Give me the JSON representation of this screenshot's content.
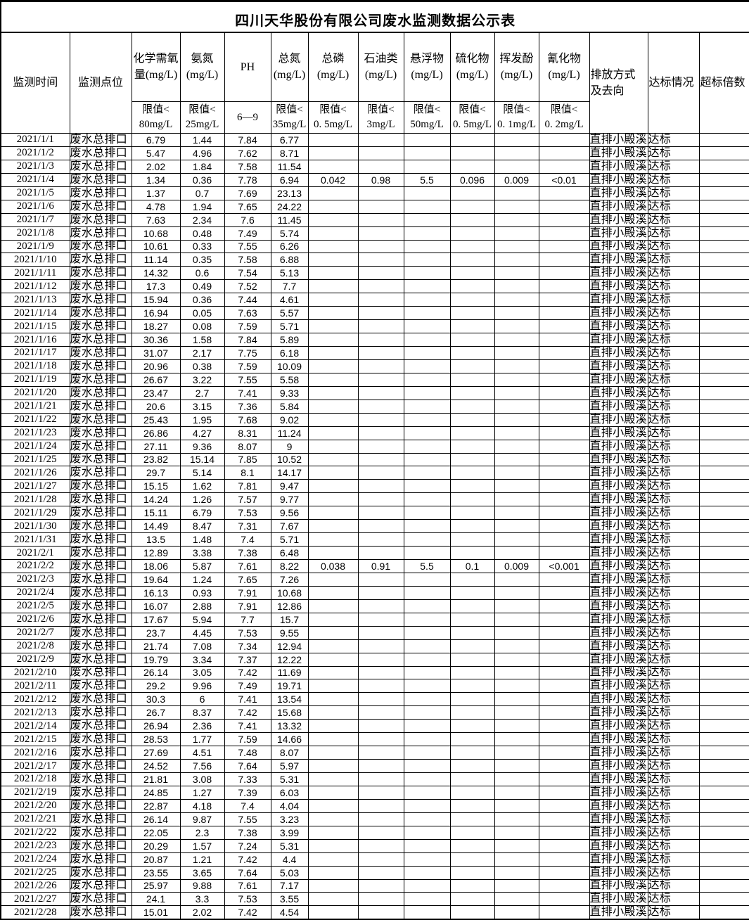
{
  "title": "四川天华股份有限公司废水监测数据公示表",
  "header": {
    "cols": [
      "监测时间",
      "监测点位",
      "化学需氧\n量(mg/L)",
      "氨氮\n(mg/L)",
      "PH",
      "总氮\n(mg/L)",
      "总磷\n(mg/L)",
      "石油类\n(mg/L)",
      "悬浮物\n(mg/L)",
      "硫化物\n(mg/L)",
      "挥发酚\n(mg/L)",
      "氰化物\n(mg/L)",
      "排放方式\n及去向",
      "达标情况",
      "超标倍数"
    ],
    "limits": [
      "限值<\n80mg/L",
      "限值<\n25mg/L",
      "6—9",
      "限值<\n35mg/L",
      "限值<\n0. 5mg/L",
      "限值<\n3mg/L",
      "限值<\n50mg/L",
      "限值<\n0. 5mg/L",
      "限值<\n0. 1mg/L",
      "限值<\n0. 2mg/L"
    ]
  },
  "repeat": {
    "monitor_point": "废水总排口",
    "discharge": "直排小殿溪",
    "status": "达标",
    "exceed_multiple": ""
  },
  "rows": [
    [
      "2021/1/1",
      "6.79",
      "1.44",
      "7.84",
      "6.77",
      "",
      "",
      "",
      "",
      "",
      ""
    ],
    [
      "2021/1/2",
      "5.47",
      "4.96",
      "7.62",
      "8.71",
      "",
      "",
      "",
      "",
      "",
      ""
    ],
    [
      "2021/1/3",
      "2.02",
      "1.84",
      "7.58",
      "11.54",
      "",
      "",
      "",
      "",
      "",
      ""
    ],
    [
      "2021/1/4",
      "1.34",
      "0.36",
      "7.78",
      "6.94",
      "0.042",
      "0.98",
      "5.5",
      "0.096",
      "0.009",
      "<0.01"
    ],
    [
      "2021/1/5",
      "1.37",
      "0.7",
      "7.69",
      "23.13",
      "",
      "",
      "",
      "",
      "",
      ""
    ],
    [
      "2021/1/6",
      "4.78",
      "1.94",
      "7.65",
      "24.22",
      "",
      "",
      "",
      "",
      "",
      ""
    ],
    [
      "2021/1/7",
      "7.63",
      "2.34",
      "7.6",
      "11.45",
      "",
      "",
      "",
      "",
      "",
      ""
    ],
    [
      "2021/1/8",
      "10.68",
      "0.48",
      "7.49",
      "5.74",
      "",
      "",
      "",
      "",
      "",
      ""
    ],
    [
      "2021/1/9",
      "10.61",
      "0.33",
      "7.55",
      "6.26",
      "",
      "",
      "",
      "",
      "",
      ""
    ],
    [
      "2021/1/10",
      "11.14",
      "0.35",
      "7.58",
      "6.88",
      "",
      "",
      "",
      "",
      "",
      ""
    ],
    [
      "2021/1/11",
      "14.32",
      "0.6",
      "7.54",
      "5.13",
      "",
      "",
      "",
      "",
      "",
      ""
    ],
    [
      "2021/1/12",
      "17.3",
      "0.49",
      "7.52",
      "7.7",
      "",
      "",
      "",
      "",
      "",
      ""
    ],
    [
      "2021/1/13",
      "15.94",
      "0.36",
      "7.44",
      "4.61",
      "",
      "",
      "",
      "",
      "",
      ""
    ],
    [
      "2021/1/14",
      "16.94",
      "0.05",
      "7.63",
      "5.57",
      "",
      "",
      "",
      "",
      "",
      ""
    ],
    [
      "2021/1/15",
      "18.27",
      "0.08",
      "7.59",
      "5.71",
      "",
      "",
      "",
      "",
      "",
      ""
    ],
    [
      "2021/1/16",
      "30.36",
      "1.58",
      "7.84",
      "5.89",
      "",
      "",
      "",
      "",
      "",
      ""
    ],
    [
      "2021/1/17",
      "31.07",
      "2.17",
      "7.75",
      "6.18",
      "",
      "",
      "",
      "",
      "",
      ""
    ],
    [
      "2021/1/18",
      "20.96",
      "0.38",
      "7.59",
      "10.09",
      "",
      "",
      "",
      "",
      "",
      ""
    ],
    [
      "2021/1/19",
      "26.67",
      "3.22",
      "7.55",
      "5.58",
      "",
      "",
      "",
      "",
      "",
      ""
    ],
    [
      "2021/1/20",
      "23.47",
      "2.7",
      "7.41",
      "9.33",
      "",
      "",
      "",
      "",
      "",
      ""
    ],
    [
      "2021/1/21",
      "20.6",
      "3.15",
      "7.36",
      "5.84",
      "",
      "",
      "",
      "",
      "",
      ""
    ],
    [
      "2021/1/22",
      "25.43",
      "1.95",
      "7.68",
      "9.02",
      "",
      "",
      "",
      "",
      "",
      ""
    ],
    [
      "2021/1/23",
      "26.86",
      "4.27",
      "8.31",
      "11.24",
      "",
      "",
      "",
      "",
      "",
      ""
    ],
    [
      "2021/1/24",
      "27.11",
      "9.36",
      "8.07",
      "9",
      "",
      "",
      "",
      "",
      "",
      ""
    ],
    [
      "2021/1/25",
      "23.82",
      "15.14",
      "7.85",
      "10.52",
      "",
      "",
      "",
      "",
      "",
      ""
    ],
    [
      "2021/1/26",
      "29.7",
      "5.14",
      "8.1",
      "14.17",
      "",
      "",
      "",
      "",
      "",
      ""
    ],
    [
      "2021/1/27",
      "15.15",
      "1.62",
      "7.81",
      "9.47",
      "",
      "",
      "",
      "",
      "",
      ""
    ],
    [
      "2021/1/28",
      "14.24",
      "1.26",
      "7.57",
      "9.77",
      "",
      "",
      "",
      "",
      "",
      ""
    ],
    [
      "2021/1/29",
      "15.11",
      "6.79",
      "7.53",
      "9.56",
      "",
      "",
      "",
      "",
      "",
      ""
    ],
    [
      "2021/1/30",
      "14.49",
      "8.47",
      "7.31",
      "7.67",
      "",
      "",
      "",
      "",
      "",
      ""
    ],
    [
      "2021/1/31",
      "13.5",
      "1.48",
      "7.4",
      "5.71",
      "",
      "",
      "",
      "",
      "",
      ""
    ],
    [
      "2021/2/1",
      "12.89",
      "3.38",
      "7.38",
      "6.48",
      "",
      "",
      "",
      "",
      "",
      ""
    ],
    [
      "2021/2/2",
      "18.06",
      "5.87",
      "7.61",
      "8.22",
      "0.038",
      "0.91",
      "5.5",
      "0.1",
      "0.009",
      "<0.001"
    ],
    [
      "2021/2/3",
      "19.64",
      "1.24",
      "7.65",
      "7.26",
      "",
      "",
      "",
      "",
      "",
      ""
    ],
    [
      "2021/2/4",
      "16.13",
      "0.93",
      "7.91",
      "10.68",
      "",
      "",
      "",
      "",
      "",
      ""
    ],
    [
      "2021/2/5",
      "16.07",
      "2.88",
      "7.91",
      "12.86",
      "",
      "",
      "",
      "",
      "",
      ""
    ],
    [
      "2021/2/6",
      "17.67",
      "5.94",
      "7.7",
      "15.7",
      "",
      "",
      "",
      "",
      "",
      ""
    ],
    [
      "2021/2/7",
      "23.7",
      "4.45",
      "7.53",
      "9.55",
      "",
      "",
      "",
      "",
      "",
      ""
    ],
    [
      "2021/2/8",
      "21.74",
      "7.08",
      "7.34",
      "12.94",
      "",
      "",
      "",
      "",
      "",
      ""
    ],
    [
      "2021/2/9",
      "19.79",
      "3.34",
      "7.37",
      "12.22",
      "",
      "",
      "",
      "",
      "",
      ""
    ],
    [
      "2021/2/10",
      "26.14",
      "3.05",
      "7.42",
      "11.69",
      "",
      "",
      "",
      "",
      "",
      ""
    ],
    [
      "2021/2/11",
      "29.2",
      "9.96",
      "7.49",
      "19.71",
      "",
      "",
      "",
      "",
      "",
      ""
    ],
    [
      "2021/2/12",
      "30.3",
      "6",
      "7.41",
      "13.54",
      "",
      "",
      "",
      "",
      "",
      ""
    ],
    [
      "2021/2/13",
      "26.7",
      "8.37",
      "7.42",
      "15.68",
      "",
      "",
      "",
      "",
      "",
      ""
    ],
    [
      "2021/2/14",
      "26.94",
      "2.36",
      "7.41",
      "13.32",
      "",
      "",
      "",
      "",
      "",
      ""
    ],
    [
      "2021/2/15",
      "28.53",
      "1.77",
      "7.59",
      "14.66",
      "",
      "",
      "",
      "",
      "",
      ""
    ],
    [
      "2021/2/16",
      "27.69",
      "4.51",
      "7.48",
      "8.07",
      "",
      "",
      "",
      "",
      "",
      ""
    ],
    [
      "2021/2/17",
      "24.52",
      "7.56",
      "7.64",
      "5.97",
      "",
      "",
      "",
      "",
      "",
      ""
    ],
    [
      "2021/2/18",
      "21.81",
      "3.08",
      "7.33",
      "5.31",
      "",
      "",
      "",
      "",
      "",
      ""
    ],
    [
      "2021/2/19",
      "24.85",
      "1.27",
      "7.39",
      "6.03",
      "",
      "",
      "",
      "",
      "",
      ""
    ],
    [
      "2021/2/20",
      "22.87",
      "4.18",
      "7.4",
      "4.04",
      "",
      "",
      "",
      "",
      "",
      ""
    ],
    [
      "2021/2/21",
      "26.14",
      "9.87",
      "7.55",
      "3.23",
      "",
      "",
      "",
      "",
      "",
      ""
    ],
    [
      "2021/2/22",
      "22.05",
      "2.3",
      "7.38",
      "3.99",
      "",
      "",
      "",
      "",
      "",
      ""
    ],
    [
      "2021/2/23",
      "20.29",
      "1.57",
      "7.24",
      "5.31",
      "",
      "",
      "",
      "",
      "",
      ""
    ],
    [
      "2021/2/24",
      "20.87",
      "1.21",
      "7.42",
      "4.4",
      "",
      "",
      "",
      "",
      "",
      ""
    ],
    [
      "2021/2/25",
      "23.55",
      "3.65",
      "7.64",
      "5.03",
      "",
      "",
      "",
      "",
      "",
      ""
    ],
    [
      "2021/2/26",
      "25.97",
      "9.88",
      "7.61",
      "7.17",
      "",
      "",
      "",
      "",
      "",
      ""
    ],
    [
      "2021/2/27",
      "24.1",
      "3.3",
      "7.53",
      "3.55",
      "",
      "",
      "",
      "",
      "",
      ""
    ],
    [
      "2021/2/28",
      "15.01",
      "2.02",
      "7.42",
      "4.54",
      "",
      "",
      "",
      "",
      "",
      ""
    ]
  ]
}
